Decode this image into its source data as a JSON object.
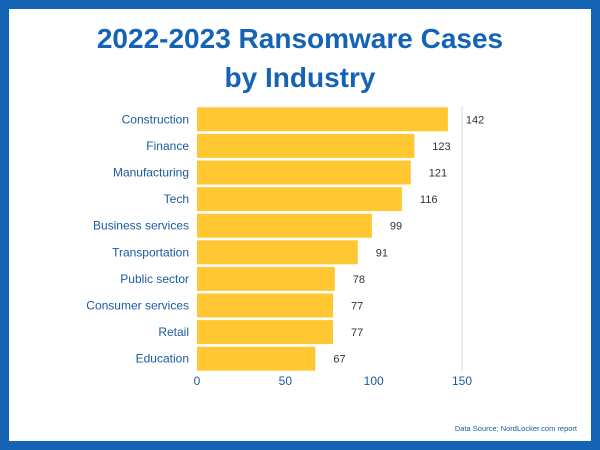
{
  "title_line1": "2022-2023 Ransomware Cases",
  "title_line2": "by Industry",
  "source": "Data Source: NordLocker.com report",
  "colors": {
    "bar": "#ffc832",
    "text": "#1463b5",
    "border": "#1463b5"
  },
  "chart_data": {
    "type": "bar",
    "orientation": "horizontal",
    "categories": [
      "Construction",
      "Finance",
      "Manufacturing",
      "Tech",
      "Business services",
      "Transportation",
      "Public sector",
      "Consumer services",
      "Retail",
      "Education"
    ],
    "values": [
      142,
      123,
      121,
      116,
      99,
      91,
      78,
      77,
      77,
      67
    ],
    "xlim": [
      0,
      150
    ],
    "xticks": [
      0,
      50,
      100,
      150
    ],
    "grid": false
  }
}
